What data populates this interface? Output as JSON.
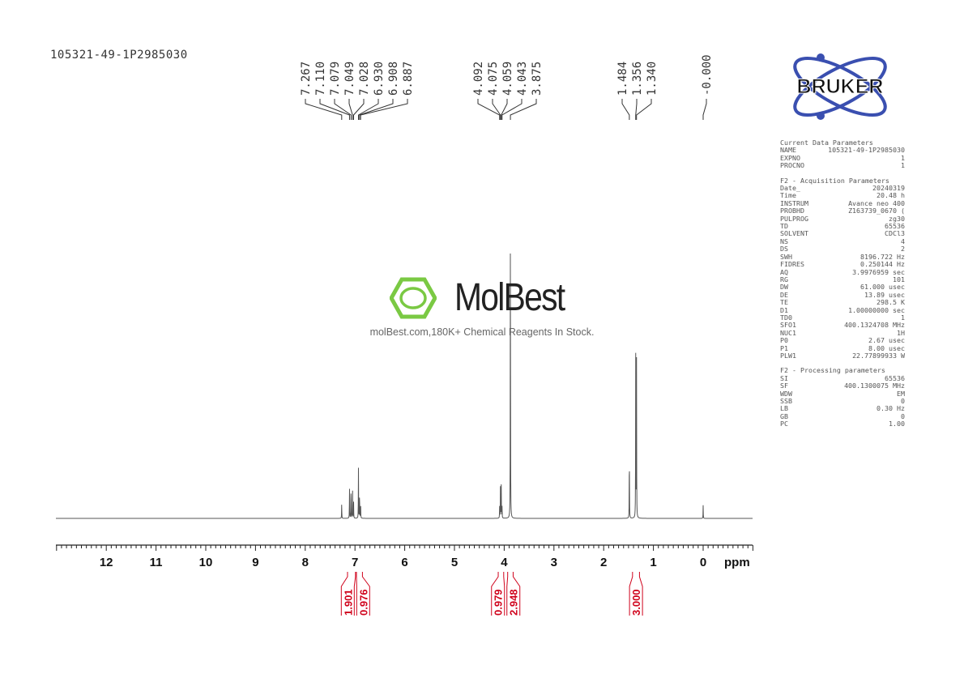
{
  "title": "105321-49-1P2985030",
  "logo": {
    "text": "BRUKER",
    "color": "#3a4fb0"
  },
  "watermark": {
    "name": "MolBest",
    "tagline": "molBest.com,180K+ Chemical Reagents In Stock.",
    "color": "#7ac943"
  },
  "parameters": {
    "sections": [
      {
        "title": "Current Data Parameters",
        "rows": [
          [
            "NAME",
            "105321-49-1P2985030"
          ],
          [
            "EXPNO",
            "1"
          ],
          [
            "PROCNO",
            "1"
          ]
        ]
      },
      {
        "title": "F2 - Acquisition Parameters",
        "rows": [
          [
            "Date_",
            "20240319"
          ],
          [
            "Time",
            "20.48 h"
          ],
          [
            "INSTRUM",
            "Avance neo 400"
          ],
          [
            "PROBHD",
            "Z163739_0670 ("
          ],
          [
            "PULPROG",
            "zg30"
          ],
          [
            "TD",
            "65536"
          ],
          [
            "SOLVENT",
            "CDCl3"
          ],
          [
            "NS",
            "4"
          ],
          [
            "DS",
            "2"
          ],
          [
            "SWH",
            "8196.722 Hz"
          ],
          [
            "FIDRES",
            "0.250144 Hz"
          ],
          [
            "AQ",
            "3.9976959 sec"
          ],
          [
            "RG",
            "101"
          ],
          [
            "DW",
            "61.000 usec"
          ],
          [
            "DE",
            "13.89 usec"
          ],
          [
            "TE",
            "298.5 K"
          ],
          [
            "D1",
            "1.00000000 sec"
          ],
          [
            "TD0",
            "1"
          ],
          [
            "SFO1",
            "400.1324708 MHz"
          ],
          [
            "NUC1",
            "1H"
          ],
          [
            "P0",
            "2.67 usec"
          ],
          [
            "P1",
            "8.00 usec"
          ],
          [
            "PLW1",
            "22.77899933 W"
          ]
        ]
      },
      {
        "title": "F2 - Processing parameters",
        "rows": [
          [
            "SI",
            "65536"
          ],
          [
            "SF",
            "400.1300075 MHz"
          ],
          [
            "WDW",
            "EM"
          ],
          [
            "SSB",
            "0"
          ],
          [
            "LB",
            "0.30 Hz"
          ],
          [
            "GB",
            "0"
          ],
          [
            "PC",
            "1.00"
          ]
        ]
      }
    ]
  },
  "chart_data": {
    "type": "line",
    "xlabel": "ppm",
    "xlim": [
      13,
      -1
    ],
    "x_reversed": true,
    "x_ticks": [
      "12",
      "11",
      "10",
      "9",
      "8",
      "7",
      "6",
      "5",
      "4",
      "3",
      "2",
      "1",
      "0"
    ],
    "grid": false,
    "line_color": "#555555",
    "integral_color": "#d0021b",
    "peaks": [
      {
        "ppm": 7.267,
        "intensity": 4.7
      },
      {
        "ppm": 7.11,
        "intensity": 10.0
      },
      {
        "ppm": 7.079,
        "intensity": 10.5
      },
      {
        "ppm": 7.049,
        "intensity": 9.5
      },
      {
        "ppm": 7.028,
        "intensity": 5.0
      },
      {
        "ppm": 6.93,
        "intensity": 15.3
      },
      {
        "ppm": 6.908,
        "intensity": 8.5
      },
      {
        "ppm": 6.887,
        "intensity": 5.5
      },
      {
        "ppm": 4.092,
        "intensity": 3.5
      },
      {
        "ppm": 4.075,
        "intensity": 10.3
      },
      {
        "ppm": 4.059,
        "intensity": 10.3
      },
      {
        "ppm": 4.043,
        "intensity": 3.5
      },
      {
        "ppm": 3.875,
        "intensity": 100
      },
      {
        "ppm": 1.484,
        "intensity": 22.7
      },
      {
        "ppm": 1.356,
        "intensity": 49.4
      },
      {
        "ppm": 1.34,
        "intensity": 49.4
      },
      {
        "ppm": 0.0,
        "intensity": 4.0
      }
    ],
    "peak_label_groups": [
      [
        "7.267",
        "7.110",
        "7.079",
        "7.049",
        "7.028",
        "6.930",
        "6.908",
        "6.887"
      ],
      [
        "4.092",
        "4.075",
        "4.059",
        "4.043",
        "3.875"
      ],
      [
        "1.484",
        "1.356",
        "1.340"
      ],
      [
        "-0.000"
      ]
    ],
    "integrals": [
      {
        "from": 7.15,
        "to": 6.99,
        "value": "1.901"
      },
      {
        "from": 6.97,
        "to": 6.85,
        "value": "0.976"
      },
      {
        "from": 4.12,
        "to": 4.01,
        "value": "0.979"
      },
      {
        "from": 3.93,
        "to": 3.82,
        "value": "2.948"
      },
      {
        "from": 1.42,
        "to": 1.28,
        "value": "3.000"
      }
    ]
  }
}
